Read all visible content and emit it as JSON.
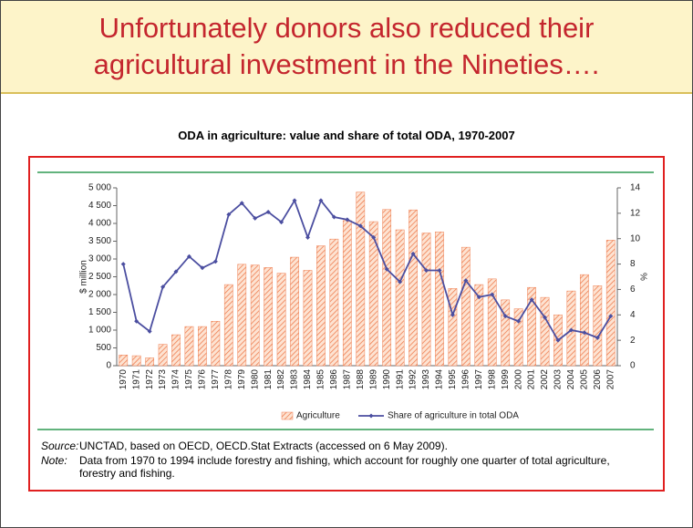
{
  "header": {
    "title_lines": [
      "Unfortunately donors also reduced their",
      "agricultural investment in the Nineties…."
    ]
  },
  "chart_data": {
    "type": "bar_line",
    "title": "ODA in agriculture: value and share of total ODA, 1970-2007",
    "ylabel": "$ million",
    "y2label": "%",
    "categories": [
      "1970",
      "1971",
      "1972",
      "1973",
      "1974",
      "1975",
      "1976",
      "1977",
      "1978",
      "1979",
      "1980",
      "1981",
      "1982",
      "1983",
      "1984",
      "1985",
      "1986",
      "1987",
      "1988",
      "1989",
      "1990",
      "1991",
      "1992",
      "1993",
      "1994",
      "1995",
      "1996",
      "1997",
      "1998",
      "1999",
      "2000",
      "2001",
      "2002",
      "2003",
      "2004",
      "2005",
      "2006",
      "2007"
    ],
    "series": [
      {
        "name": "Agriculture",
        "color": "#ef7f52",
        "values": [
          300,
          280,
          220,
          600,
          870,
          1100,
          1100,
          1250,
          2280,
          2850,
          2830,
          2760,
          2600,
          3050,
          2680,
          3370,
          3560,
          4080,
          4880,
          4050,
          4390,
          3820,
          4380,
          3730,
          3760,
          2170,
          3330,
          2280,
          2440,
          1850,
          1600,
          2200,
          1920,
          1430,
          2100,
          2560,
          2250,
          3530
        ]
      },
      {
        "name": "Share of agriculture in total ODA",
        "color": "#4b4ea0",
        "axis": "y2",
        "values": [
          8.0,
          3.5,
          2.7,
          6.2,
          7.4,
          8.6,
          7.7,
          8.2,
          11.9,
          12.8,
          11.6,
          12.1,
          11.3,
          13.0,
          10.1,
          13.0,
          11.7,
          11.5,
          11.0,
          10.1,
          7.6,
          6.6,
          8.8,
          7.5,
          7.5,
          4.0,
          6.7,
          5.4,
          5.6,
          3.9,
          3.5,
          5.2,
          3.8,
          2.0,
          2.8,
          2.6,
          2.2,
          3.9
        ]
      }
    ],
    "ylim": [
      0,
      5000
    ],
    "yticks": [
      0,
      500,
      {
        "value": 1000,
        "label": "1 000"
      },
      {
        "value": 1500,
        "label": "1 500"
      },
      {
        "value": 2000,
        "label": "2 000"
      },
      {
        "value": 2500,
        "label": "2 500"
      },
      {
        "value": 3000,
        "label": "3 000"
      },
      {
        "value": 3500,
        "label": "3 500"
      },
      {
        "value": 4000,
        "label": "4 000"
      },
      {
        "value": 4500,
        "label": "4 500"
      },
      {
        "value": 5000,
        "label": "5 000"
      }
    ],
    "y2lim": [
      0,
      14
    ],
    "y2ticks": [
      0,
      2,
      4,
      6,
      8,
      10,
      12,
      14
    ],
    "notes": [
      {
        "label": "Source:",
        "text": "UNCTAD, based on OECD, OECD.Stat Extracts (accessed on 6 May 2009)."
      },
      {
        "label": "Note:",
        "text": "Data from 1970 to 1994 include forestry and fishing, which account for roughly one quarter of total agriculture, forestry and fishing."
      }
    ]
  }
}
